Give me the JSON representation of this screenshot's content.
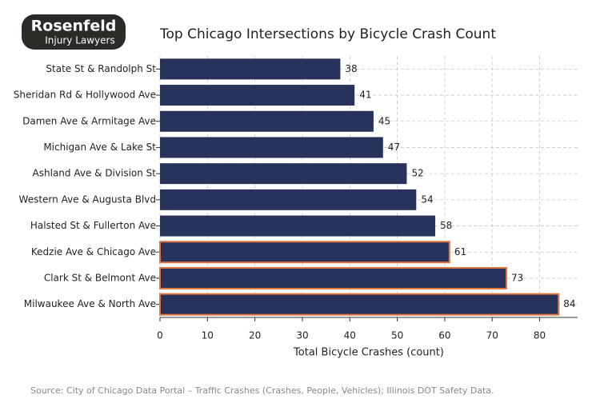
{
  "logo": {
    "name": "Rosenfeld",
    "tagline": "Injury Lawyers"
  },
  "chart_data": {
    "type": "barh",
    "title": "Top Chicago Intersections by Bicycle Crash Count",
    "categories": [
      "State St & Randolph St",
      "Sheridan Rd & Hollywood Ave",
      "Damen Ave & Armitage Ave",
      "Michigan Ave & Lake St",
      "Ashland Ave & Division St",
      "Western Ave & Augusta Blvd",
      "Halsted St & Fullerton Ave",
      "Kedzie Ave & Chicago Ave",
      "Clark St & Belmont Ave",
      "Milwaukee Ave & North Ave"
    ],
    "values": [
      38,
      41,
      45,
      47,
      52,
      54,
      58,
      61,
      73,
      84
    ],
    "color": "#27335a",
    "edge_colors": [
      null,
      null,
      null,
      null,
      null,
      null,
      null,
      "#e2763f",
      "#e2763f",
      "#e2763f"
    ],
    "xlabel": "Total Bicycle Crashes (count)",
    "xlim": [
      0,
      88
    ],
    "xticks": [
      0,
      10,
      20,
      30,
      40,
      50,
      60,
      70,
      80
    ],
    "grid": true,
    "source": "Source: City of Chicago Data Portal – Traffic Crashes (Crashes, People, Vehicles); Illinois DOT Safety Data."
  }
}
